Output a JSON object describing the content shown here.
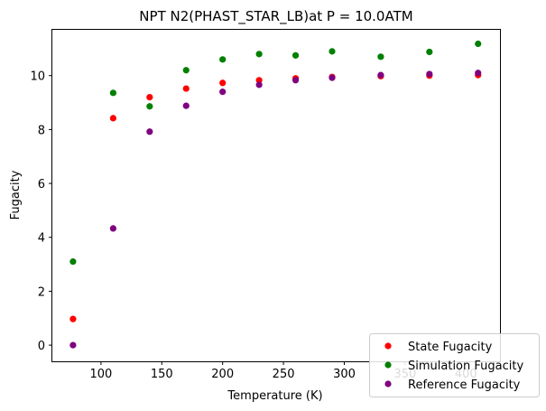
{
  "chart_data": {
    "type": "scatter",
    "title": "NPT N2(PHAST_STAR_LB)at P = 10.0ATM",
    "xlabel": "Temperature (K)",
    "ylabel": "Fugacity",
    "xlim": [
      60,
      428
    ],
    "ylim": [
      -0.6,
      11.7
    ],
    "x_ticks": [
      100,
      150,
      200,
      250,
      300,
      350,
      400
    ],
    "y_ticks": [
      0,
      2,
      4,
      6,
      8,
      10
    ],
    "legend_position": "lower-right",
    "grid": false,
    "series": [
      {
        "name": "State Fugacity",
        "color": "#ff0000",
        "points": [
          [
            77,
            0.97
          ],
          [
            110,
            8.42
          ],
          [
            140,
            9.2
          ],
          [
            170,
            9.52
          ],
          [
            200,
            9.73
          ],
          [
            230,
            9.83
          ],
          [
            260,
            9.9
          ],
          [
            290,
            9.95
          ],
          [
            330,
            9.98
          ],
          [
            370,
            10.0
          ],
          [
            410,
            10.02
          ]
        ]
      },
      {
        "name": "Simulation Fugacity",
        "color": "#008000",
        "points": [
          [
            77,
            3.1
          ],
          [
            110,
            9.36
          ],
          [
            140,
            8.86
          ],
          [
            170,
            10.2
          ],
          [
            200,
            10.6
          ],
          [
            230,
            10.8
          ],
          [
            260,
            10.75
          ],
          [
            290,
            10.9
          ],
          [
            330,
            10.7
          ],
          [
            370,
            10.88
          ],
          [
            410,
            11.18
          ]
        ]
      },
      {
        "name": "Reference Fugacity",
        "color": "#800080",
        "points": [
          [
            77,
            0.0
          ],
          [
            110,
            4.33
          ],
          [
            140,
            7.92
          ],
          [
            170,
            8.88
          ],
          [
            200,
            9.4
          ],
          [
            230,
            9.66
          ],
          [
            260,
            9.83
          ],
          [
            290,
            9.92
          ],
          [
            330,
            10.02
          ],
          [
            370,
            10.06
          ],
          [
            410,
            10.1
          ]
        ]
      }
    ]
  }
}
